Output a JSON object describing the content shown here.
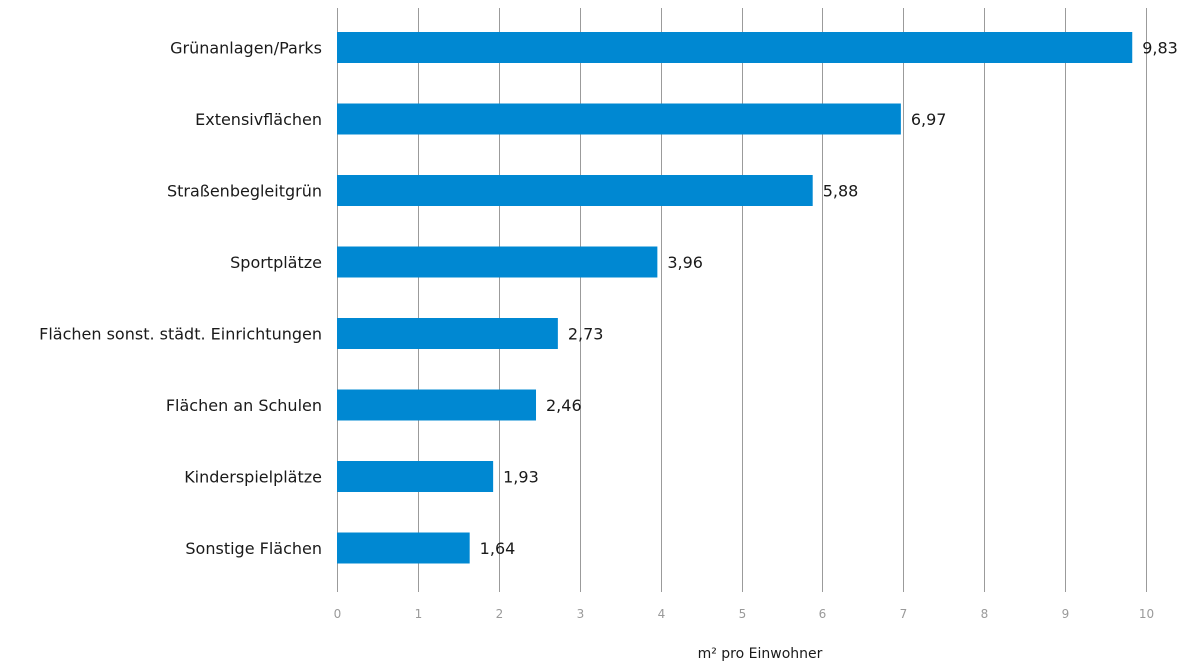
{
  "chart_data": {
    "type": "bar",
    "orientation": "horizontal",
    "categories": [
      "Grünanlagen/Parks",
      "Extensivflächen",
      "Straßenbegleitgrün",
      "Sportplätze",
      "Flächen sonst. städt. Einrichtungen",
      "Flächen an Schulen",
      "Kinderspielplätze",
      "Sonstige Flächen"
    ],
    "values": [
      9.83,
      6.97,
      5.88,
      3.96,
      2.73,
      2.46,
      1.93,
      1.64
    ],
    "value_labels": [
      "9,83",
      "6,97",
      "5,88",
      "3,96",
      "2,73",
      "2,46",
      "1,93",
      "1,64"
    ],
    "xticks": [
      "0",
      "1",
      "2",
      "3",
      "4",
      "5",
      "6",
      "7",
      "8",
      "9",
      "10"
    ],
    "xlim": [
      0,
      10
    ],
    "xlabel": "m² pro Einwohner",
    "ylabel": "",
    "title": "",
    "grid": "vertical",
    "legend": "none",
    "bar_color": "#0088d2",
    "grid_color": "#9b9b9b",
    "tick_color": "#9a9a9a",
    "text_color": "#1a1a1a"
  }
}
